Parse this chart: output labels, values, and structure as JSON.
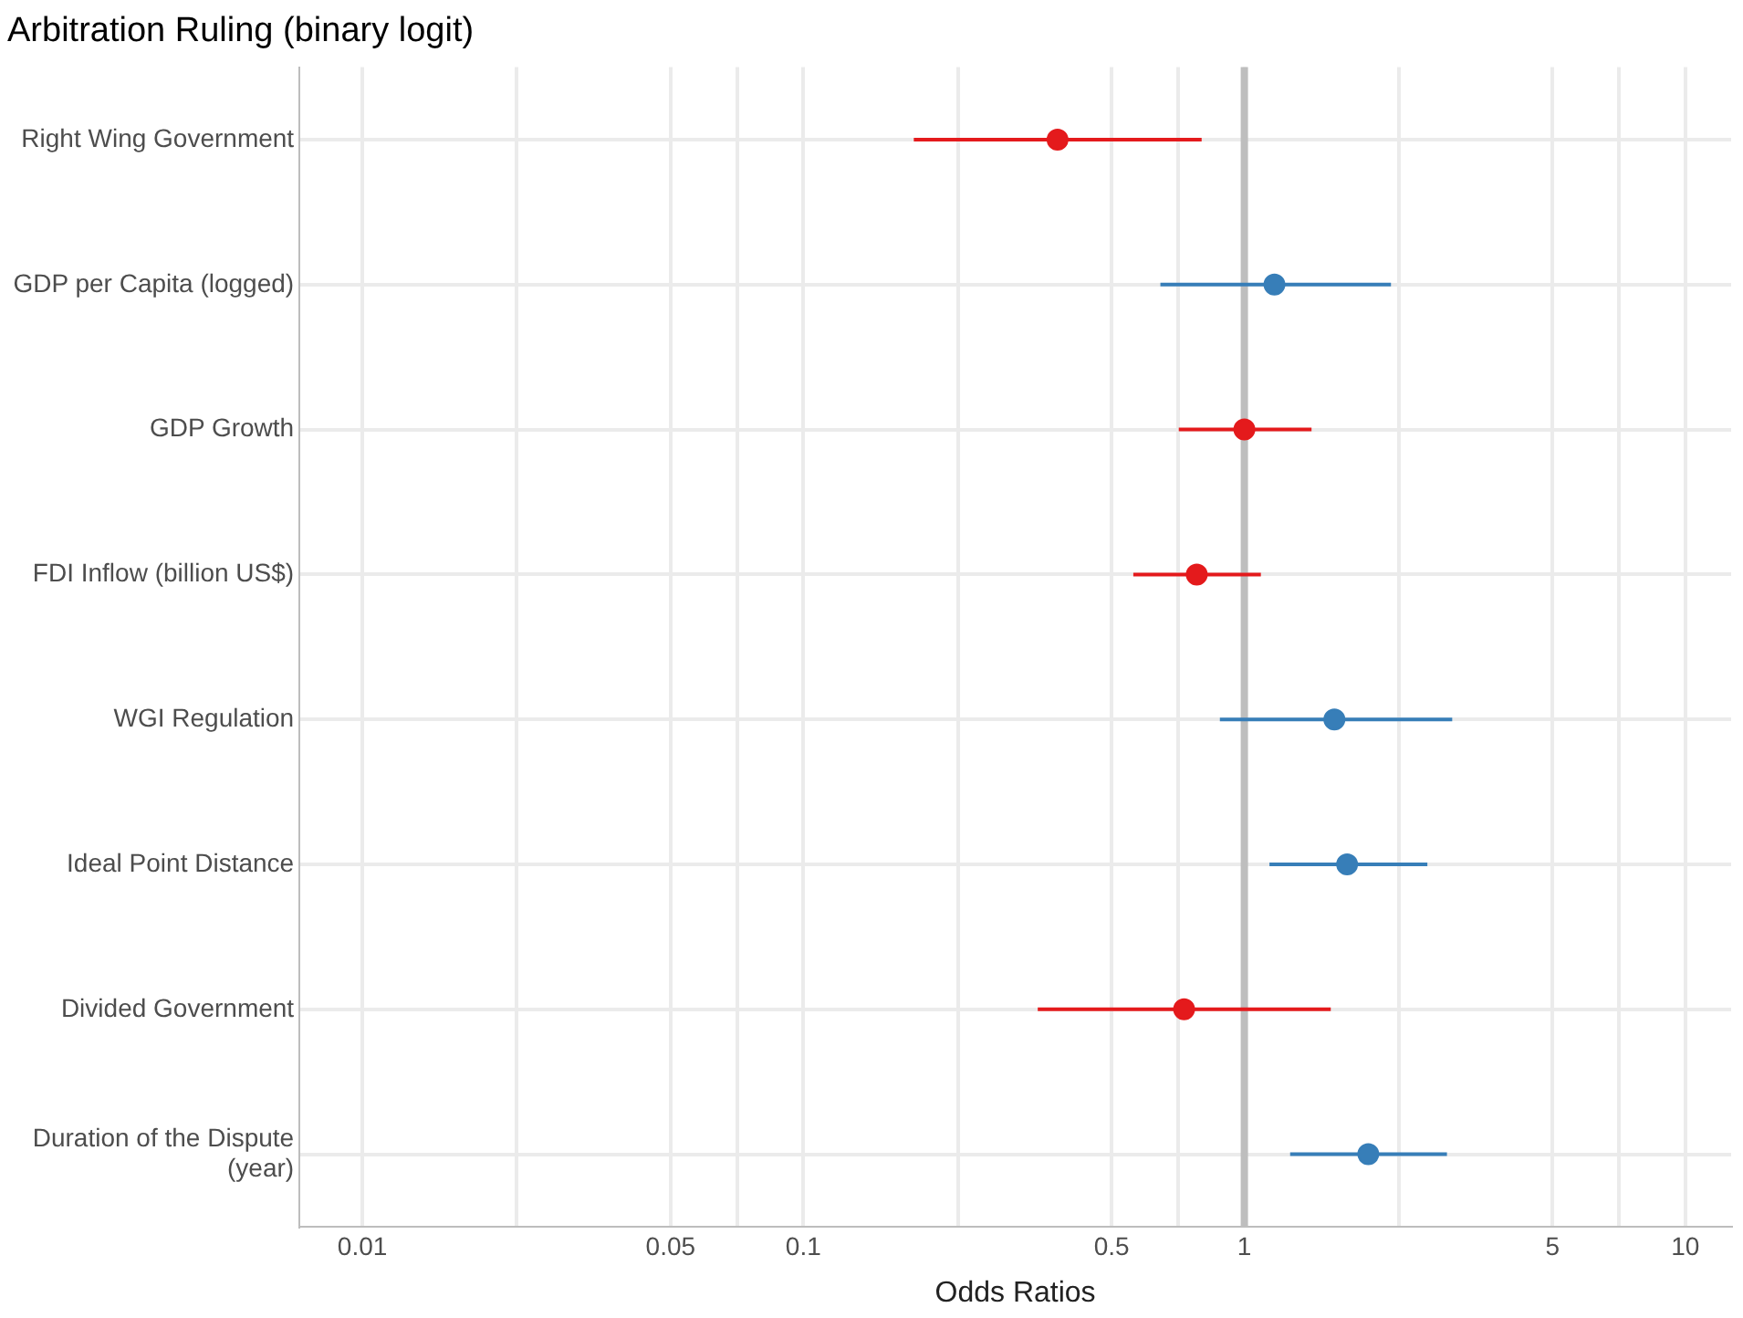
{
  "chart_data": {
    "type": "scatter",
    "orientation": "horizontal",
    "title": "Arbitration Ruling (binary logit)",
    "xlabel": "Odds Ratios",
    "categories": [
      "Right Wing Government",
      "GDP per Capita (logged)",
      "GDP Growth",
      "FDI Inflow (billion US$)",
      "WGI Regulation",
      "Ideal Point Distance",
      "Divided Government",
      "Duration of the Dispute (year)"
    ],
    "values": [
      0.377,
      1.17,
      1.0,
      0.78,
      1.6,
      1.71,
      0.73,
      1.91
    ],
    "errors": [
      [
        0.178,
        0.8
      ],
      [
        0.645,
        2.15
      ],
      [
        0.71,
        1.42
      ],
      [
        0.56,
        1.09
      ],
      [
        0.88,
        2.96
      ],
      [
        1.14,
        2.6
      ],
      [
        0.34,
        1.57
      ],
      [
        1.27,
        2.88
      ]
    ],
    "colors": [
      "#e41a1c",
      "#377eb8",
      "#e41a1c",
      "#e41a1c",
      "#377eb8",
      "#377eb8",
      "#e41a1c",
      "#377eb8"
    ],
    "xlim": [
      0.0072,
      12.7
    ],
    "log": "x",
    "xticks": [
      0.01,
      {
        "value": 0.0224,
        "label": null
      },
      0.05,
      {
        "value": 0.0707,
        "label": null
      },
      0.1,
      {
        "value": 0.224,
        "label": null
      },
      0.5,
      {
        "value": 0.707,
        "label": null
      },
      1,
      {
        "value": 2.24,
        "label": null
      },
      5,
      {
        "value": 7.07,
        "label": null
      },
      10
    ],
    "ref_lines": [
      {
        "axis": "x",
        "value": 1,
        "color": "#bebebe"
      }
    ],
    "grid": true,
    "marker": "circle",
    "legend": false
  }
}
